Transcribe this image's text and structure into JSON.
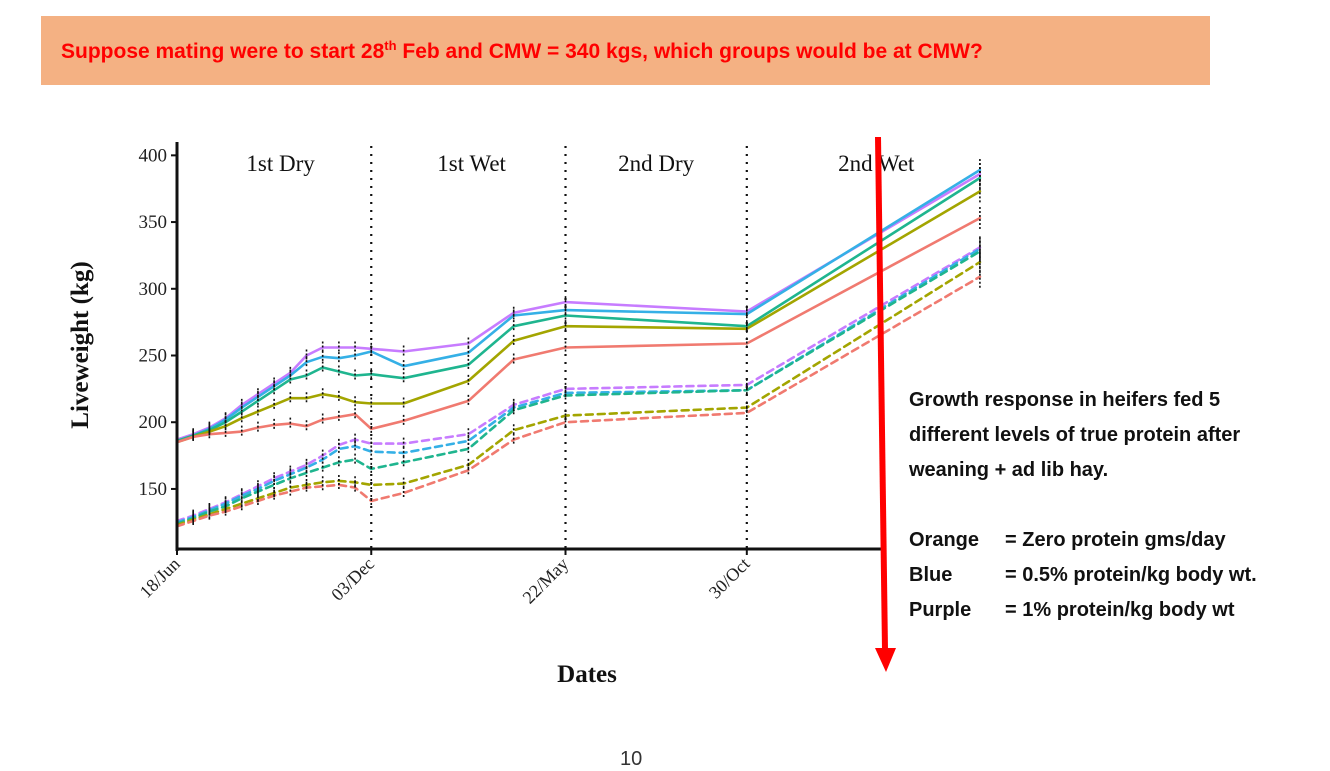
{
  "banner": {
    "text_before": "Suppose mating were to start 28",
    "superscript": "th",
    "text_after": " Feb and CMW = 340 kgs, which groups would be at CMW?"
  },
  "annotation": {
    "description_lines": [
      "Growth response in heifers fed 5",
      "different levels of true protein after",
      "weaning + ad lib hay."
    ],
    "legend": [
      {
        "key": "Orange ",
        "value": "= Zero protein gms/day"
      },
      {
        "key": "Blue      ",
        "value": "= 0.5% protein/kg body wt."
      },
      {
        "key": "Purple   ",
        "value": "= 1% protein/kg body wt"
      }
    ],
    "arrow_color": "#ff0000"
  },
  "page_number": "10",
  "chart_data": {
    "type": "line",
    "xlabel": "Dates",
    "ylabel": "Liveweight (kg)",
    "ylim": [
      105,
      410
    ],
    "yticks": [
      150,
      200,
      250,
      300,
      350,
      400
    ],
    "x_range": [
      0,
      13.05
    ],
    "xticks": [
      {
        "x": 0,
        "label": "18/Jun"
      },
      {
        "x": 3,
        "label": "03/Dec"
      },
      {
        "x": 6,
        "label": "22/May"
      },
      {
        "x": 8.8,
        "label": "30/Oct"
      }
    ],
    "periods": [
      {
        "label": "1st Dry",
        "x": 1.6
      },
      {
        "label": "1st Wet",
        "x": 4.55
      },
      {
        "label": "2nd Dry",
        "x": 7.4
      },
      {
        "label": "2nd Wet",
        "x": 10.8
      }
    ],
    "dividers": [
      3,
      6,
      8.8
    ],
    "x": [
      0,
      0.25,
      0.5,
      0.75,
      1.0,
      1.25,
      1.5,
      1.75,
      2.0,
      2.25,
      2.5,
      2.75,
      3.0,
      3.5,
      4.5,
      5.2,
      6.0,
      8.8,
      12.4
    ],
    "series": [
      {
        "color": "#c77cff",
        "dashed": false,
        "values": [
          187,
          191,
          196,
          203,
          213,
          221,
          229,
          237,
          250,
          256,
          256,
          256,
          255,
          253,
          259,
          282,
          290,
          283,
          386
        ]
      },
      {
        "color": "#35b0e6",
        "dashed": false,
        "values": [
          186,
          190,
          195,
          202,
          211,
          219,
          227,
          235,
          245,
          249,
          248,
          250,
          253,
          242,
          252,
          280,
          284,
          281,
          389
        ]
      },
      {
        "color": "#1fb58f",
        "dashed": false,
        "values": [
          186,
          190,
          194,
          200,
          208,
          216,
          224,
          232,
          235,
          241,
          238,
          235,
          236,
          233,
          243,
          272,
          280,
          272,
          383
        ]
      },
      {
        "color": "#a3a500",
        "dashed": false,
        "values": [
          185,
          189,
          193,
          197,
          203,
          208,
          213,
          218,
          218,
          221,
          219,
          215,
          214,
          214,
          231,
          261,
          272,
          270,
          373
        ]
      },
      {
        "color": "#f07a70",
        "dashed": false,
        "values": [
          185,
          189,
          191,
          192,
          193,
          196,
          198,
          199,
          197,
          202,
          204,
          206,
          195,
          201,
          216,
          247,
          256,
          259,
          353
        ]
      },
      {
        "color": "#c77cff",
        "dashed": true,
        "values": [
          126,
          130,
          135,
          140,
          146,
          152,
          158,
          163,
          168,
          175,
          183,
          187,
          184,
          184,
          191,
          213,
          225,
          228,
          331
        ]
      },
      {
        "color": "#35b0e6",
        "dashed": true,
        "values": [
          125,
          129,
          134,
          139,
          145,
          150,
          156,
          161,
          166,
          172,
          180,
          182,
          178,
          177,
          186,
          211,
          222,
          224,
          330
        ]
      },
      {
        "color": "#1fb58f",
        "dashed": true,
        "values": [
          124,
          128,
          133,
          137,
          143,
          148,
          153,
          158,
          162,
          166,
          170,
          172,
          165,
          170,
          180,
          209,
          220,
          224,
          328
        ]
      },
      {
        "color": "#a3a500",
        "dashed": true,
        "values": [
          123,
          127,
          131,
          135,
          139,
          143,
          147,
          151,
          153,
          155,
          156,
          155,
          153,
          154,
          168,
          194,
          205,
          211,
          320
        ]
      },
      {
        "color": "#f07a70",
        "dashed": true,
        "values": [
          122,
          126,
          130,
          133,
          137,
          141,
          145,
          148,
          151,
          152,
          153,
          151,
          141,
          147,
          164,
          187,
          200,
          207,
          309
        ]
      }
    ]
  }
}
